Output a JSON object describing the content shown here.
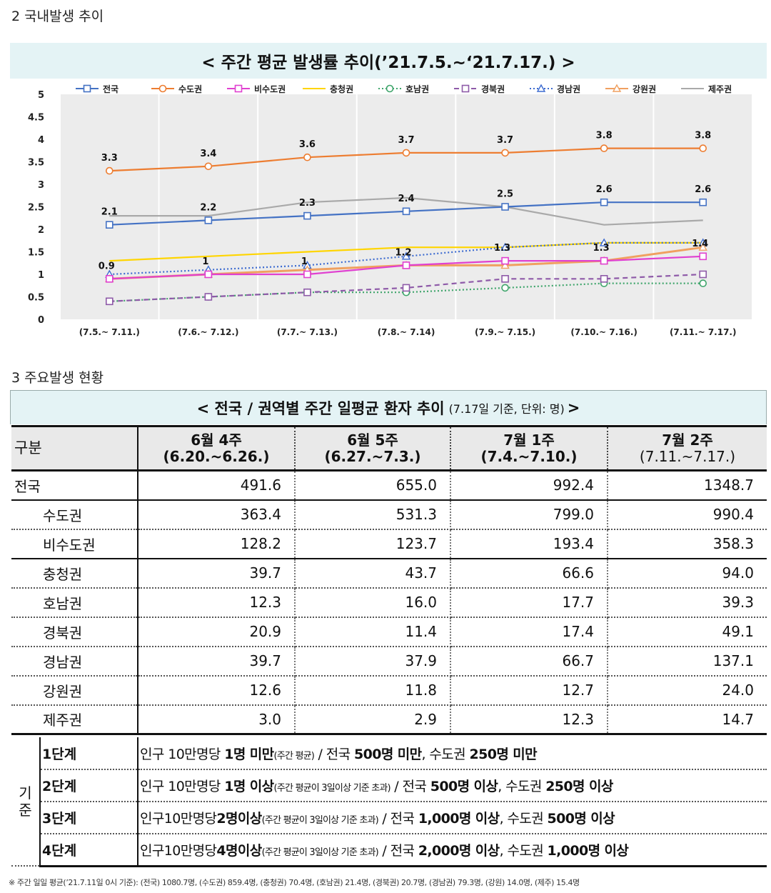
{
  "section2_title": "2  국내발생 추이",
  "section3_title": "3  주요발생 현황",
  "chart_data": {
    "type": "line",
    "title": "< 주간 평균 발생률 추이(’21.7.5.~‘21.7.17.) >",
    "categories": [
      "(7.5.~ 7.11.)",
      "(7.6.~ 7.12.)",
      "(7.7.~ 7.13.)",
      "(7.8.~ 7.14)",
      "(7.9.~ 7.15.)",
      "(7.10.~ 7.16.)",
      "(7.11.~ 7.17.)"
    ],
    "ylim": [
      0,
      5
    ],
    "yticks": [
      "0",
      "0.5",
      "1",
      "1.5",
      "2",
      "2.5",
      "3",
      "3.5",
      "4",
      "4.5",
      "5"
    ],
    "legend_position": "top",
    "series": [
      {
        "name": "전국",
        "color": "#4472c4",
        "marker": "square",
        "dash": "",
        "values": [
          2.1,
          2.2,
          2.3,
          2.4,
          2.5,
          2.6,
          2.6
        ],
        "labels": [
          "2.1",
          "2.2",
          "2.3",
          "2.4",
          "2.5",
          "2.6",
          "2.6"
        ]
      },
      {
        "name": "수도권",
        "color": "#ed7d31",
        "marker": "circle",
        "dash": "",
        "values": [
          3.3,
          3.4,
          3.6,
          3.7,
          3.7,
          3.8,
          3.8
        ],
        "labels": [
          "3.3",
          "3.4",
          "3.6",
          "3.7",
          "3.7",
          "3.8",
          "3.8"
        ]
      },
      {
        "name": "비수도권",
        "color": "#e040d0",
        "marker": "square",
        "dash": "",
        "values": [
          0.9,
          1.0,
          1.0,
          1.2,
          1.3,
          1.3,
          1.4
        ],
        "labels": [
          "0.9",
          "1",
          "1",
          "1.2",
          "1.3",
          "1.3",
          "1.4"
        ]
      },
      {
        "name": "충청권",
        "color": "#ffd500",
        "marker": "none",
        "dash": "",
        "values": [
          1.3,
          1.4,
          1.5,
          1.6,
          1.6,
          1.7,
          1.7
        ]
      },
      {
        "name": "호남권",
        "color": "#3fa56b",
        "marker": "circle",
        "dash": "2,3",
        "values": [
          0.4,
          0.5,
          0.6,
          0.6,
          0.7,
          0.8,
          0.8
        ]
      },
      {
        "name": "경북권",
        "color": "#8e5aa8",
        "marker": "square",
        "dash": "7,5",
        "values": [
          0.4,
          0.5,
          0.6,
          0.7,
          0.9,
          0.9,
          1.0
        ]
      },
      {
        "name": "경남권",
        "color": "#3d6bd0",
        "marker": "triangle",
        "dash": "2,3",
        "values": [
          1.0,
          1.1,
          1.2,
          1.4,
          1.6,
          1.7,
          1.7
        ]
      },
      {
        "name": "강원권",
        "color": "#f0a060",
        "marker": "triangle",
        "dash": "",
        "values": [
          0.9,
          1.0,
          1.1,
          1.2,
          1.2,
          1.3,
          1.6
        ]
      },
      {
        "name": "제주권",
        "color": "#a9a9a9",
        "marker": "none",
        "dash": "",
        "values": [
          2.3,
          2.3,
          2.6,
          2.7,
          2.5,
          2.1,
          2.2
        ]
      }
    ]
  },
  "table": {
    "title": "< 전국 / 권역별 주간 일평균 환자 추이",
    "title_sub": "(7.17일 기준, 단위: 명)",
    "title_end": ">",
    "corner": "구분",
    "weeks": [
      {
        "label": "6월 4주",
        "range": "(6.20.~6.26.)"
      },
      {
        "label": "6월 5주",
        "range": "(6.27.~7.3.)"
      },
      {
        "label": "7월 1주",
        "range": "(7.4.~7.10.)"
      },
      {
        "label": "7월 2주",
        "range": "(7.11.~7.17.)"
      }
    ],
    "rows": [
      {
        "name": "전국",
        "values": [
          "491.6",
          "655.0",
          "992.4",
          "1348.7"
        ]
      },
      {
        "name": "수도권",
        "values": [
          "363.4",
          "531.3",
          "799.0",
          "990.4"
        ]
      },
      {
        "name": "비수도권",
        "values": [
          "128.2",
          "123.7",
          "193.4",
          "358.3"
        ]
      },
      {
        "name": "충청권",
        "values": [
          "39.7",
          "43.7",
          "66.6",
          "94.0"
        ]
      },
      {
        "name": "호남권",
        "values": [
          "12.3",
          "16.0",
          "17.7",
          "39.3"
        ]
      },
      {
        "name": "경북권",
        "values": [
          "20.9",
          "11.4",
          "17.4",
          "49.1"
        ]
      },
      {
        "name": "경남권",
        "values": [
          "39.7",
          "37.9",
          "66.7",
          "137.1"
        ]
      },
      {
        "name": "강원권",
        "values": [
          "12.6",
          "11.8",
          "12.7",
          "24.0"
        ]
      },
      {
        "name": "제주권",
        "values": [
          "3.0",
          "2.9",
          "12.3",
          "14.7"
        ]
      }
    ]
  },
  "criteria": {
    "label": "기준",
    "stages": [
      {
        "stage": "1단계",
        "p1": "인구 10만명당 ",
        "b1": "1명 미만",
        "s1": "(주간 평균)",
        "p2": " / 전국 ",
        "b2": "500명 미만",
        "p3": ", 수도권 ",
        "b3": "250명 미만"
      },
      {
        "stage": "2단계",
        "p1": "인구 10만명당 ",
        "b1": "1명 이상",
        "s1": "(주간 평균이 3일이상 기준 초과)",
        "p2": " / 전국 ",
        "b2": "500명 이상",
        "p3": ", 수도권 ",
        "b3": "250명 이상"
      },
      {
        "stage": "3단계",
        "p1": "인구10만명당",
        "b1": "2명이상",
        "s1": "(주간 평균이 3일이상 기준 초과)",
        "p2": " / 전국 ",
        "b2": "1,000명 이상",
        "p3": ", 수도권 ",
        "b3": "500명 이상"
      },
      {
        "stage": "4단계",
        "p1": "인구10만명당",
        "b1": "4명이상",
        "s1": "(주간 평균이 3일이상 기준 초과)",
        "p2": " / 전국 ",
        "b2": "2,000명 이상",
        "p3": ", 수도권 ",
        "b3": "1,000명 이상"
      }
    ]
  },
  "footnote": "※ 주간 일일 평균(’21.7.11일 0시 기준): (전국) 1080.7명, (수도권) 859.4명, (충청권) 70.4명, (호남권) 21.4명, (경북권) 20.7명, (경남권) 79.3명, (강원) 14.0명, (제주) 15.4명"
}
